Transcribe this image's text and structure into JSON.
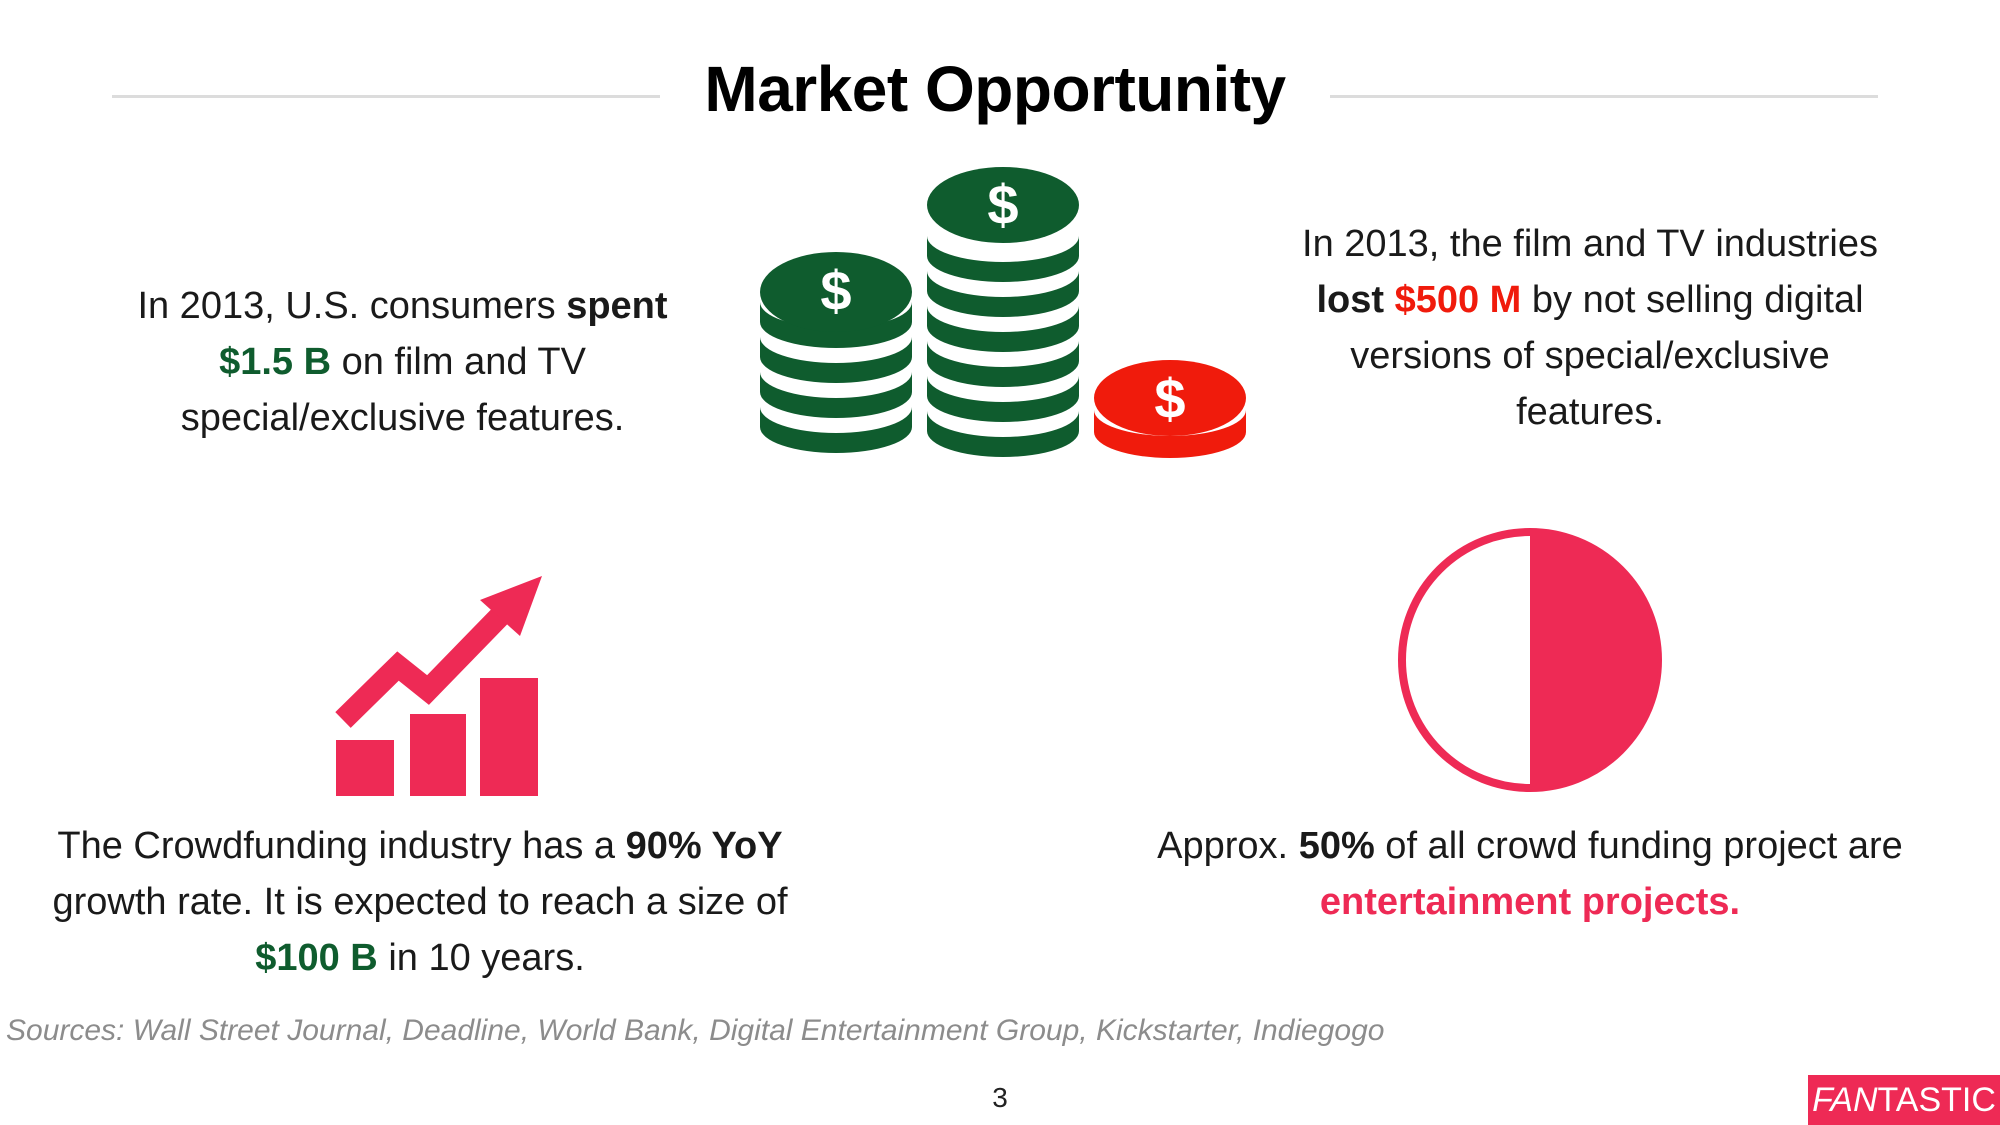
{
  "slide": {
    "title": "Market Opportunity",
    "page_number": "3",
    "sources": "Sources: Wall Street Journal, Deadline, World Bank, Digital Entertainment Group, Kickstarter, Indiegogo"
  },
  "brand": {
    "part1": "FAN",
    "part2": "TASTIC",
    "color": "#ee2a55"
  },
  "colors": {
    "green": "#0f5c2e",
    "red": "#f01b0c",
    "pink": "#ee2a55"
  },
  "top_left": {
    "t1": "In 2013, U.S. consumers ",
    "b1": "spent",
    "v1": "$1.5 B",
    "t2": " on film and TV special/exclusive features."
  },
  "top_right": {
    "t1": "In 2013, the film and TV industries ",
    "b1": "lost",
    "v1": "$500 M",
    "t2": " by not selling digital versions of special/exclusive features."
  },
  "bottom_left": {
    "t1": "The Crowdfunding industry has a ",
    "b1": "90% YoY",
    "t2": " growth rate. It is expected to reach a size of ",
    "v1": "$100 B",
    "t3": " in 10 years."
  },
  "bottom_right": {
    "t1": "Approx. ",
    "b1": "50%",
    "t2": " of all crowd funding project are ",
    "v1": "entertainment projects."
  },
  "pie": {
    "fraction": 0.5
  },
  "icons": {
    "coins": "coin-stacks-icon",
    "coin_symbol": "$",
    "growth": "growth-chart-icon",
    "pie": "pie-chart-icon"
  }
}
